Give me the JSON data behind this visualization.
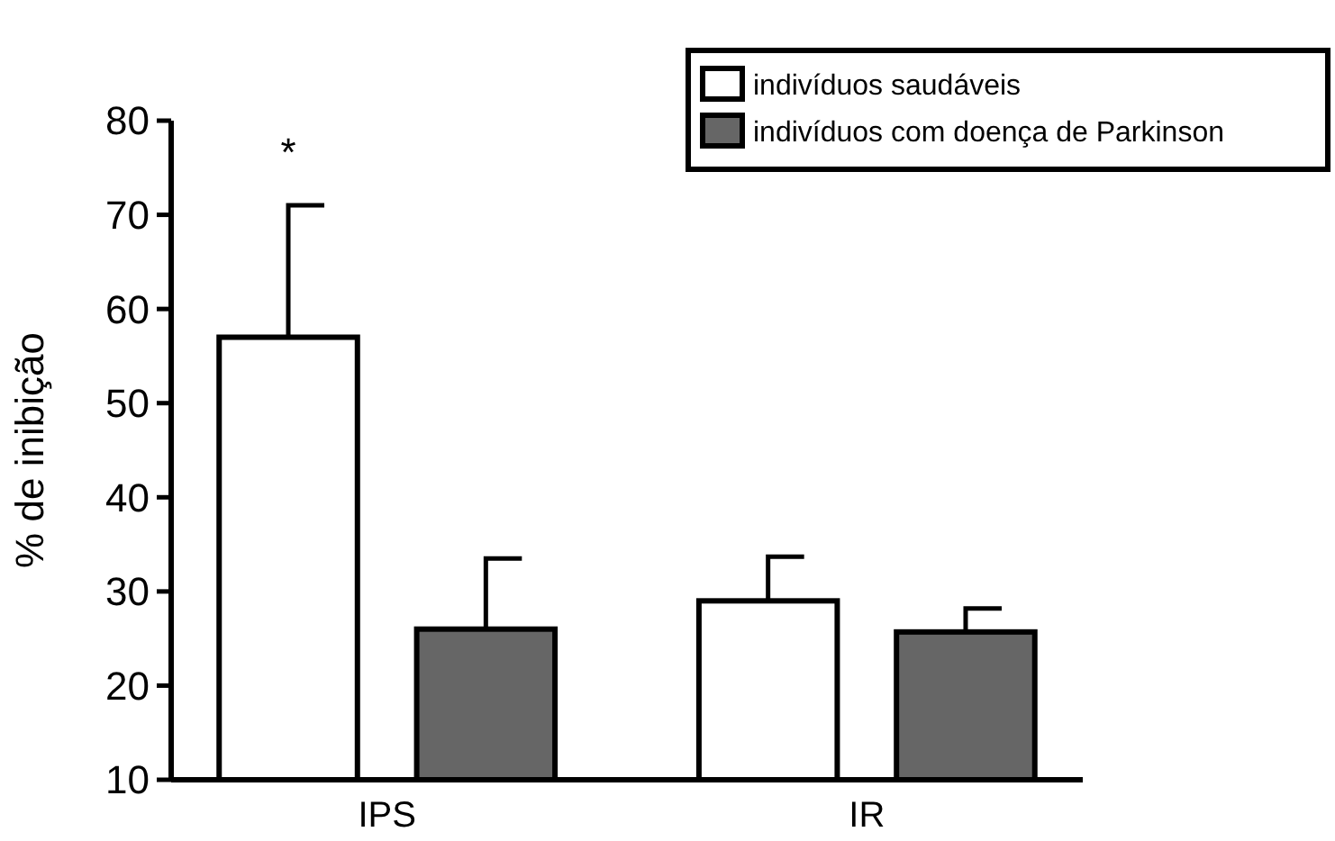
{
  "chart_data": {
    "type": "bar",
    "ylabel": "% de inibição",
    "categories": [
      "IPS",
      "IR"
    ],
    "series": [
      {
        "name": "indivíduos saudáveis",
        "color": "#ffffff",
        "values": [
          57,
          29
        ],
        "errors": [
          [
            57,
            71
          ],
          [
            29,
            33.7
          ]
        ]
      },
      {
        "name": "indivíduos com doença de Parkinson",
        "color": "#666666",
        "values": [
          26,
          25.7
        ],
        "errors": [
          [
            26,
            33.5
          ],
          [
            25.7,
            28.2
          ]
        ]
      }
    ],
    "ylim": [
      10,
      80
    ],
    "yticks": [
      10,
      20,
      30,
      40,
      50,
      60,
      70,
      80
    ],
    "grid": false,
    "legend": "top right",
    "annotations": [
      "*"
    ]
  }
}
